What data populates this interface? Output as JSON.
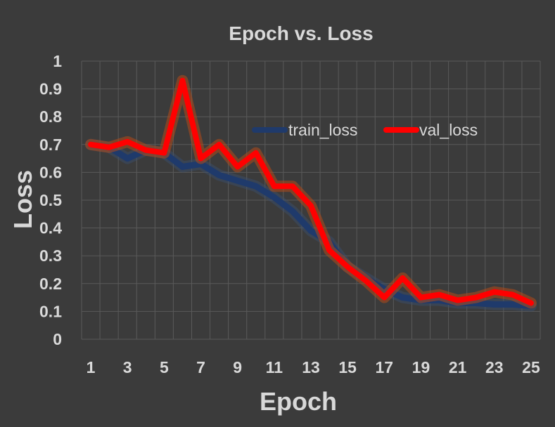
{
  "chart_data": {
    "type": "line",
    "title": "Epoch vs. Loss",
    "xlabel": "Epoch",
    "ylabel": "Loss",
    "x": [
      1,
      2,
      3,
      4,
      5,
      6,
      7,
      8,
      9,
      10,
      11,
      12,
      13,
      14,
      15,
      16,
      17,
      18,
      19,
      20,
      21,
      22,
      23,
      24,
      25
    ],
    "x_tick_labels": [
      "1",
      "3",
      "5",
      "7",
      "9",
      "11",
      "13",
      "15",
      "17",
      "19",
      "21",
      "23",
      "25"
    ],
    "y_tick_labels": [
      "0",
      "0.1",
      "0.2",
      "0.3",
      "0.4",
      "0.5",
      "0.6",
      "0.7",
      "0.8",
      "0.9",
      "1"
    ],
    "ylim": [
      0,
      1
    ],
    "grid": true,
    "legend_position": "top-right",
    "series": [
      {
        "name": "train_loss",
        "color": "#1f3a6b",
        "values": [
          0.7,
          0.69,
          0.65,
          0.68,
          0.67,
          0.62,
          0.63,
          0.59,
          0.57,
          0.55,
          0.51,
          0.46,
          0.39,
          0.35,
          0.26,
          0.22,
          0.18,
          0.15,
          0.14,
          0.14,
          0.13,
          0.13,
          0.125,
          0.125,
          0.12
        ]
      },
      {
        "name": "val_loss",
        "color": "#ff0000",
        "values": [
          0.7,
          0.69,
          0.71,
          0.68,
          0.67,
          0.93,
          0.65,
          0.7,
          0.62,
          0.67,
          0.55,
          0.55,
          0.48,
          0.32,
          0.26,
          0.21,
          0.15,
          0.22,
          0.15,
          0.16,
          0.14,
          0.15,
          0.17,
          0.16,
          0.13
        ]
      }
    ]
  }
}
